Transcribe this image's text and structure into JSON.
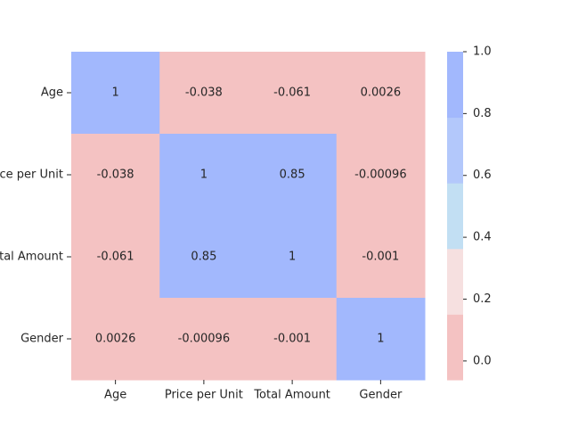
{
  "chart_data": {
    "type": "heatmap",
    "title": "",
    "rows": [
      "Age",
      "Price per Unit",
      "Total Amount",
      "Gender"
    ],
    "columns": [
      "Age",
      "Price per Unit",
      "Total Amount",
      "Gender"
    ],
    "values": [
      [
        1,
        -0.038,
        -0.061,
        0.0026
      ],
      [
        -0.038,
        1,
        0.85,
        -0.00096
      ],
      [
        -0.061,
        0.85,
        1,
        -0.001
      ],
      [
        0.0026,
        -0.00096,
        -0.001,
        1
      ]
    ],
    "cell_labels": [
      [
        "1",
        "-0.038",
        "-0.061",
        "0.0026"
      ],
      [
        "-0.038",
        "1",
        "0.85",
        "-0.00096"
      ],
      [
        "-0.061",
        "0.85",
        "1",
        "-0.001"
      ],
      [
        "0.0026",
        "-0.00096",
        "-0.001",
        "1"
      ]
    ],
    "colorbar": {
      "range": [
        -0.061,
        1
      ],
      "ticks": [
        0.0,
        0.2,
        0.4,
        0.6,
        0.8,
        1.0
      ],
      "tick_labels": [
        "0.0",
        "0.2",
        "0.4",
        "0.6",
        "0.8",
        "1.0"
      ],
      "palette": [
        "#f4c2c2",
        "#f6e0e0",
        "#c2dff3",
        "#b3c8fb",
        "#a2b8fd"
      ]
    }
  }
}
